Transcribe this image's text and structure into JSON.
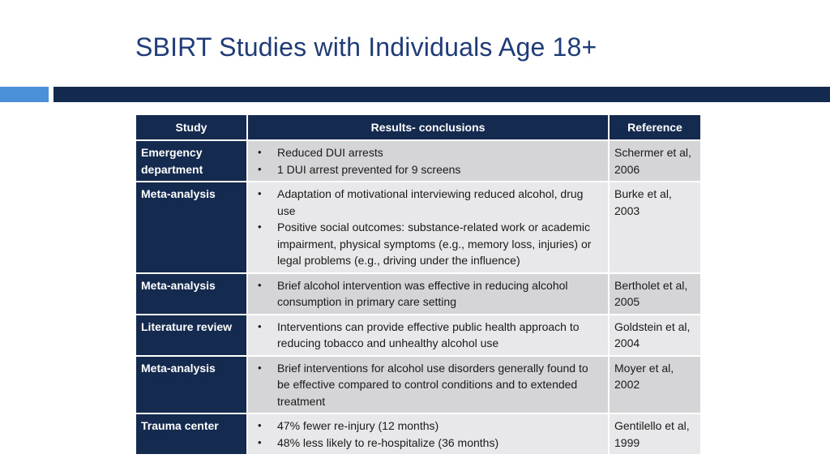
{
  "slide": {
    "title": "SBIRT Studies with Individuals Age 18+"
  },
  "table": {
    "headers": {
      "study": "Study",
      "results": "Results- conclusions",
      "reference": "Reference"
    },
    "rows": [
      {
        "study": "Emergency department",
        "results": [
          "Reduced DUI arrests",
          "1 DUI arrest prevented for 9 screens"
        ],
        "reference": "Schermer et al, 2006"
      },
      {
        "study": "Meta-analysis",
        "results": [
          "Adaptation of motivational interviewing reduced alcohol, drug use",
          "Positive social outcomes: substance-related work or academic impairment, physical symptoms (e.g., memory loss, injuries) or legal problems (e.g., driving under the influence)"
        ],
        "reference": "Burke et al, 2003"
      },
      {
        "study": "Meta-analysis",
        "results": [
          "Brief alcohol intervention was effective in reducing alcohol consumption in primary care setting"
        ],
        "reference": "Bertholet et al, 2005"
      },
      {
        "study": "Literature review",
        "results": [
          "Interventions can provide effective public health approach to reducing tobacco and unhealthy alcohol use"
        ],
        "reference": "Goldstein et al, 2004"
      },
      {
        "study": "Meta-analysis",
        "results": [
          "Brief interventions for alcohol use disorders generally found to be effective compared to control conditions and to extended treatment"
        ],
        "reference": "Moyer et al, 2002"
      },
      {
        "study": "Trauma center",
        "results": [
          "47% fewer re-injury (12 months)",
          "48% less likely to re-hospitalize (36 months)"
        ],
        "reference": "Gentilello et al, 1999"
      }
    ]
  },
  "colors": {
    "title": "#1f3c78",
    "header_bg": "#142a4f",
    "accent_light": "#4a90d9",
    "row_bg": "#d5d5d8",
    "row_bg_alt": "#e8e8ea"
  },
  "icons": {
    "bullet": "•"
  }
}
